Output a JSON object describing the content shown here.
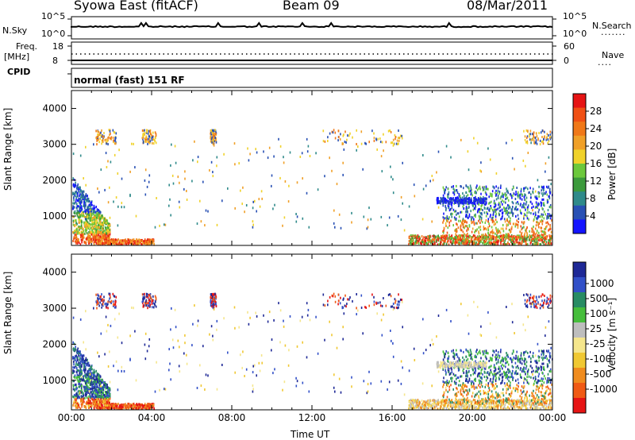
{
  "header": {
    "station": "Syowa East (fitACF)",
    "beam": "Beam 09",
    "date": "08/Mar/2011"
  },
  "top_panels": {
    "nsky_label": "N.Sky",
    "nsearch_label": "N.Search",
    "noise_ticks_left": [
      "10^5",
      "10^0"
    ],
    "noise_ticks_right": [
      "10^5",
      "10^0"
    ],
    "freq_label": "Freq.",
    "freq_unit": "[MHz]",
    "freq_ticks": [
      "18",
      "8"
    ],
    "nave_label": "Nave",
    "nave_ticks": [
      "60",
      "0"
    ],
    "cpid_label": "CPID",
    "cpid_text": "normal (fast) 151 RF"
  },
  "chart_data": [
    {
      "type": "heatmap",
      "panel": "power",
      "ylabel": "Slant Range [km]",
      "xlabel": "",
      "yticks": [
        "1000",
        "2000",
        "3000",
        "4000"
      ],
      "ylim": [
        180,
        4500
      ],
      "xlim_hours": [
        0,
        24
      ],
      "colorbar": {
        "label": "Power [dB]",
        "ticks": [
          "4",
          "8",
          "12",
          "16",
          "20",
          "24",
          "28"
        ],
        "range": [
          0,
          32
        ],
        "colors": [
          "#1414ff",
          "#2850b4",
          "#2f8a8a",
          "#3c9a3c",
          "#6cc83c",
          "#f0d22a",
          "#f0a028",
          "#f07818",
          "#f05014",
          "#e61414"
        ]
      }
    },
    {
      "type": "heatmap",
      "panel": "velocity",
      "ylabel": "Slant Range [km]",
      "xlabel": "Time UT",
      "yticks": [
        "1000",
        "2000",
        "3000",
        "4000"
      ],
      "ylim": [
        180,
        4500
      ],
      "xlim_hours": [
        0,
        24
      ],
      "xticks": [
        "00:00",
        "04:00",
        "08:00",
        "12:00",
        "16:00",
        "20:00",
        "00:00"
      ],
      "colorbar": {
        "label": "Velocity [m s⁻¹]",
        "ticks": [
          "1000",
          "500",
          "100",
          "25",
          "-25",
          "-100",
          "-500",
          "-1000"
        ],
        "colors": [
          "#1e2896",
          "#3250c8",
          "#288c64",
          "#46be3c",
          "#bebebe",
          "#f5e68c",
          "#f0c832",
          "#f08c1e",
          "#f05a14",
          "#e61414"
        ]
      }
    }
  ]
}
